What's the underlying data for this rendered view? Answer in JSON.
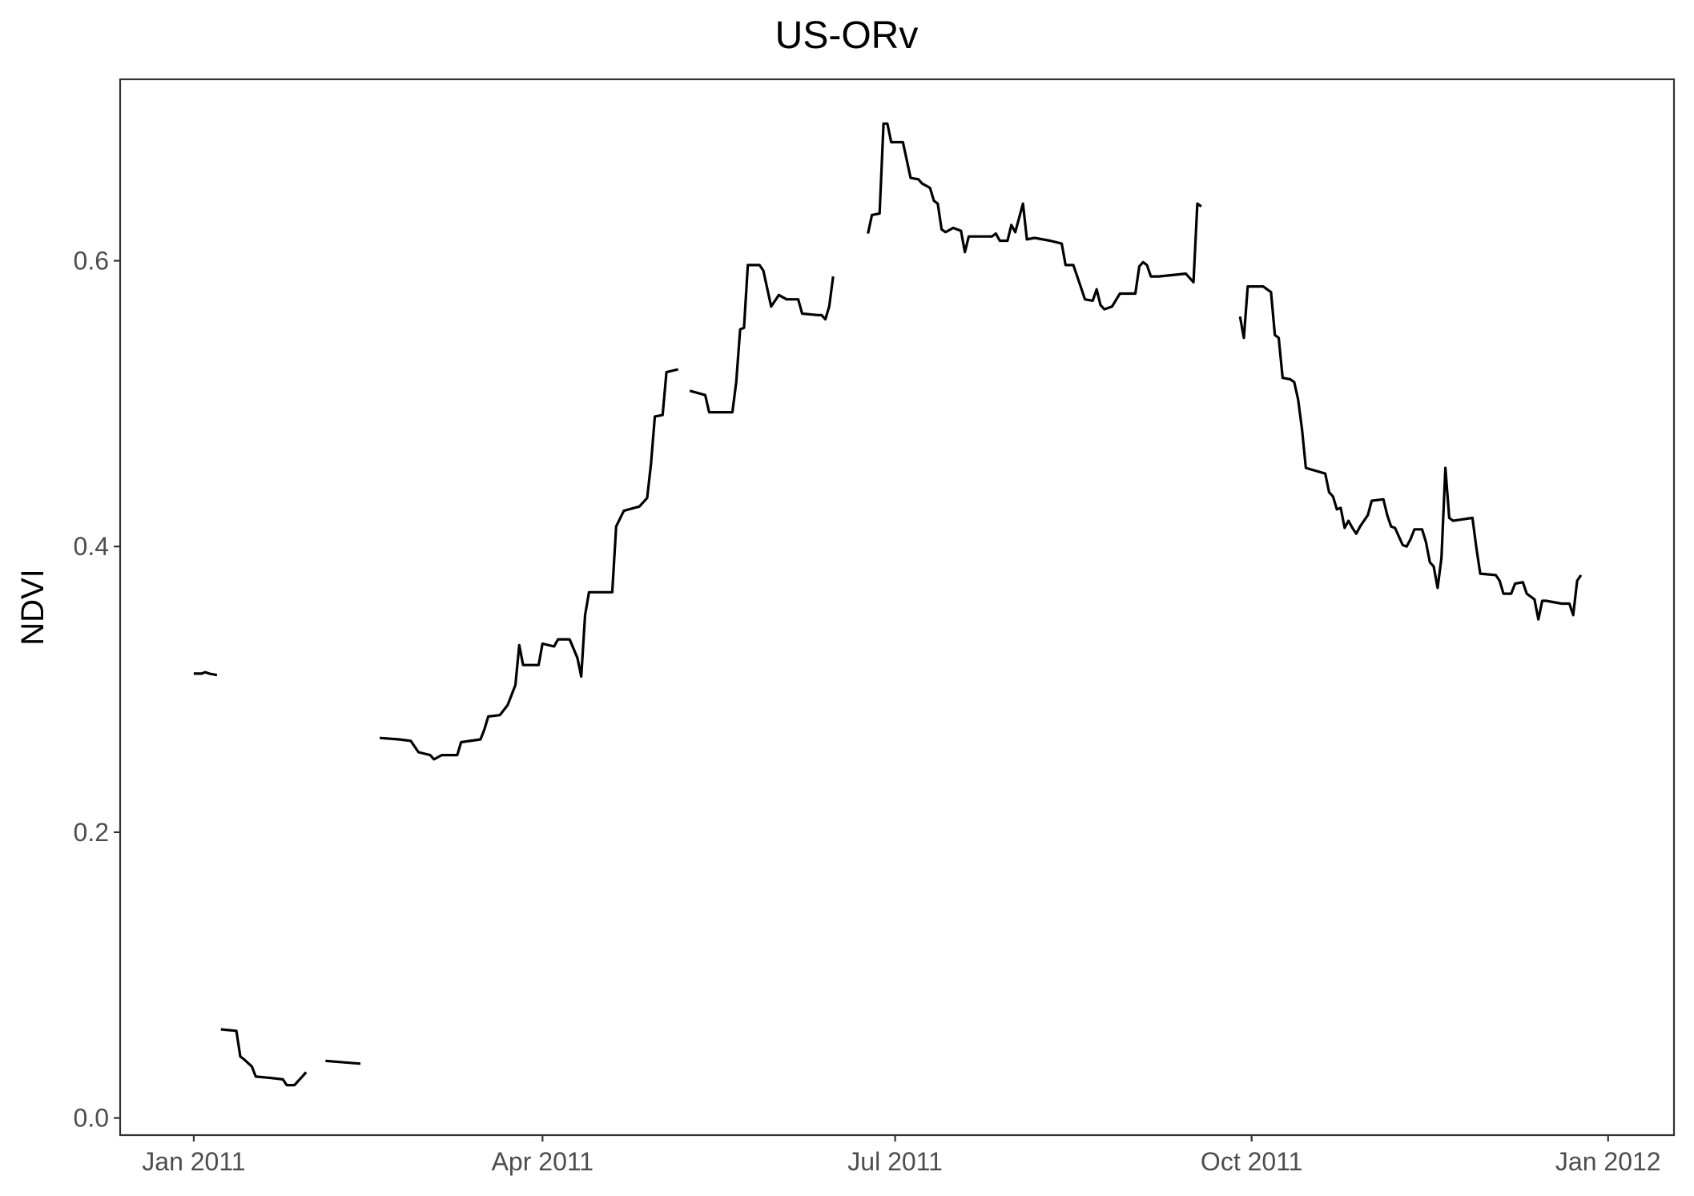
{
  "chart_data": {
    "type": "line",
    "title": "US-ORv",
    "xlabel": "",
    "ylabel": "NDVI",
    "x_ticks": [
      {
        "date": "2011-01-01",
        "label": "Jan 2011"
      },
      {
        "date": "2011-04-01",
        "label": "Apr 2011"
      },
      {
        "date": "2011-07-01",
        "label": "Jul 2011"
      },
      {
        "date": "2011-10-01",
        "label": "Oct 2011"
      },
      {
        "date": "2012-01-01",
        "label": "Jan 2012"
      }
    ],
    "y_ticks": [
      {
        "value": 0.0,
        "label": "0.0"
      },
      {
        "value": 0.2,
        "label": "0.2"
      },
      {
        "value": 0.4,
        "label": "0.4"
      },
      {
        "value": 0.6,
        "label": "0.6"
      }
    ],
    "xlim": [
      "2010-12-13",
      "2012-01-18"
    ],
    "ylim": [
      -0.012,
      0.727
    ],
    "grid": false,
    "legend": "none",
    "line_color": "#000000",
    "series": [
      {
        "segments": [
          [
            [
              "2011-01-01",
              0.311
            ],
            [
              "2011-01-03",
              0.311
            ],
            [
              "2011-01-04",
              0.312
            ],
            [
              "2011-01-05",
              0.311
            ],
            [
              "2011-01-07",
              0.31
            ]
          ],
          [
            [
              "2011-01-08",
              0.062
            ],
            [
              "2011-01-12",
              0.061
            ],
            [
              "2011-01-13",
              0.043
            ],
            [
              "2011-01-14",
              0.041
            ],
            [
              "2011-01-16",
              0.036
            ],
            [
              "2011-01-17",
              0.029
            ],
            [
              "2011-01-21",
              0.028
            ],
            [
              "2011-01-24",
              0.027
            ],
            [
              "2011-01-25",
              0.023
            ],
            [
              "2011-01-27",
              0.023
            ],
            [
              "2011-01-28",
              0.026
            ],
            [
              "2011-01-29",
              0.029
            ],
            [
              "2011-01-30",
              0.032
            ]
          ],
          [
            [
              "2011-02-04",
              0.04
            ],
            [
              "2011-02-13",
              0.038
            ]
          ],
          [
            [
              "2011-02-18",
              0.266
            ],
            [
              "2011-02-23",
              0.265
            ],
            [
              "2011-02-26",
              0.264
            ],
            [
              "2011-02-28",
              0.256
            ],
            [
              "2011-03-03",
              0.254
            ],
            [
              "2011-03-04",
              0.251
            ],
            [
              "2011-03-06",
              0.254
            ],
            [
              "2011-03-10",
              0.254
            ],
            [
              "2011-03-11",
              0.263
            ],
            [
              "2011-03-16",
              0.265
            ],
            [
              "2011-03-17",
              0.272
            ],
            [
              "2011-03-18",
              0.281
            ],
            [
              "2011-03-21",
              0.282
            ],
            [
              "2011-03-23",
              0.289
            ],
            [
              "2011-03-25",
              0.303
            ],
            [
              "2011-03-26",
              0.331
            ],
            [
              "2011-03-27",
              0.317
            ],
            [
              "2011-03-31",
              0.317
            ],
            [
              "2011-04-01",
              0.332
            ],
            [
              "2011-04-04",
              0.33
            ],
            [
              "2011-04-05",
              0.335
            ],
            [
              "2011-04-08",
              0.335
            ],
            [
              "2011-04-10",
              0.322
            ],
            [
              "2011-04-11",
              0.309
            ],
            [
              "2011-04-12",
              0.352
            ],
            [
              "2011-04-13",
              0.368
            ],
            [
              "2011-04-19",
              0.368
            ],
            [
              "2011-04-20",
              0.414
            ],
            [
              "2011-04-22",
              0.425
            ],
            [
              "2011-04-26",
              0.428
            ],
            [
              "2011-04-28",
              0.434
            ],
            [
              "2011-04-29",
              0.458
            ],
            [
              "2011-04-30",
              0.491
            ],
            [
              "2011-05-02",
              0.492
            ],
            [
              "2011-05-03",
              0.522
            ],
            [
              "2011-05-06",
              0.524
            ]
          ],
          [
            [
              "2011-05-09",
              0.509
            ],
            [
              "2011-05-13",
              0.506
            ],
            [
              "2011-05-14",
              0.494
            ],
            [
              "2011-05-20",
              0.494
            ],
            [
              "2011-05-21",
              0.515
            ],
            [
              "2011-05-22",
              0.552
            ],
            [
              "2011-05-23",
              0.553
            ],
            [
              "2011-05-24",
              0.597
            ],
            [
              "2011-05-27",
              0.597
            ],
            [
              "2011-05-28",
              0.593
            ],
            [
              "2011-05-30",
              0.568
            ],
            [
              "2011-06-01",
              0.576
            ],
            [
              "2011-06-03",
              0.573
            ],
            [
              "2011-06-06",
              0.573
            ],
            [
              "2011-06-07",
              0.563
            ],
            [
              "2011-06-11",
              0.562
            ],
            [
              "2011-06-12",
              0.562
            ],
            [
              "2011-06-13",
              0.559
            ],
            [
              "2011-06-14",
              0.568
            ],
            [
              "2011-06-15",
              0.589
            ]
          ],
          [
            [
              "2011-06-24",
              0.619
            ],
            [
              "2011-06-25",
              0.632
            ],
            [
              "2011-06-27",
              0.633
            ],
            [
              "2011-06-28",
              0.696
            ],
            [
              "2011-06-29",
              0.696
            ],
            [
              "2011-06-30",
              0.683
            ],
            [
              "2011-07-03",
              0.683
            ],
            [
              "2011-07-05",
              0.658
            ],
            [
              "2011-07-07",
              0.657
            ],
            [
              "2011-07-08",
              0.654
            ],
            [
              "2011-07-10",
              0.651
            ],
            [
              "2011-07-11",
              0.642
            ],
            [
              "2011-07-12",
              0.64
            ],
            [
              "2011-07-13",
              0.622
            ],
            [
              "2011-07-14",
              0.62
            ],
            [
              "2011-07-16",
              0.623
            ],
            [
              "2011-07-18",
              0.621
            ],
            [
              "2011-07-19",
              0.606
            ],
            [
              "2011-07-20",
              0.617
            ],
            [
              "2011-07-26",
              0.617
            ],
            [
              "2011-07-27",
              0.619
            ],
            [
              "2011-07-28",
              0.614
            ],
            [
              "2011-07-30",
              0.614
            ],
            [
              "2011-07-31",
              0.625
            ],
            [
              "2011-08-01",
              0.62
            ],
            [
              "2011-08-02",
              0.63
            ],
            [
              "2011-08-03",
              0.64
            ],
            [
              "2011-08-04",
              0.615
            ],
            [
              "2011-08-06",
              0.616
            ],
            [
              "2011-08-10",
              0.614
            ],
            [
              "2011-08-13",
              0.612
            ],
            [
              "2011-08-14",
              0.597
            ],
            [
              "2011-08-16",
              0.597
            ],
            [
              "2011-08-18",
              0.581
            ],
            [
              "2011-08-19",
              0.573
            ],
            [
              "2011-08-21",
              0.572
            ],
            [
              "2011-08-22",
              0.58
            ],
            [
              "2011-08-23",
              0.569
            ],
            [
              "2011-08-24",
              0.566
            ],
            [
              "2011-08-26",
              0.568
            ],
            [
              "2011-08-28",
              0.577
            ],
            [
              "2011-09-01",
              0.577
            ],
            [
              "2011-09-02",
              0.596
            ],
            [
              "2011-09-03",
              0.599
            ],
            [
              "2011-09-04",
              0.597
            ],
            [
              "2011-09-05",
              0.589
            ],
            [
              "2011-09-07",
              0.589
            ],
            [
              "2011-09-14",
              0.591
            ],
            [
              "2011-09-15",
              0.588
            ],
            [
              "2011-09-16",
              0.585
            ],
            [
              "2011-09-17",
              0.64
            ],
            [
              "2011-09-18",
              0.638
            ]
          ],
          [
            [
              "2011-09-28",
              0.561
            ],
            [
              "2011-09-29",
              0.546
            ],
            [
              "2011-09-30",
              0.582
            ],
            [
              "2011-10-04",
              0.582
            ],
            [
              "2011-10-05",
              0.58
            ],
            [
              "2011-10-06",
              0.578
            ],
            [
              "2011-10-07",
              0.548
            ],
            [
              "2011-10-08",
              0.546
            ],
            [
              "2011-10-09",
              0.518
            ],
            [
              "2011-10-11",
              0.517
            ],
            [
              "2011-10-12",
              0.515
            ],
            [
              "2011-10-13",
              0.503
            ],
            [
              "2011-10-14",
              0.482
            ],
            [
              "2011-10-15",
              0.455
            ],
            [
              "2011-10-20",
              0.451
            ],
            [
              "2011-10-21",
              0.438
            ],
            [
              "2011-10-22",
              0.435
            ],
            [
              "2011-10-23",
              0.426
            ],
            [
              "2011-10-24",
              0.427
            ],
            [
              "2011-10-25",
              0.413
            ],
            [
              "2011-10-26",
              0.418
            ],
            [
              "2011-10-27",
              0.413
            ],
            [
              "2011-10-28",
              0.409
            ],
            [
              "2011-10-29",
              0.414
            ],
            [
              "2011-10-31",
              0.422
            ],
            [
              "2011-11-01",
              0.432
            ],
            [
              "2011-11-04",
              0.433
            ],
            [
              "2011-11-05",
              0.422
            ],
            [
              "2011-11-06",
              0.414
            ],
            [
              "2011-11-07",
              0.413
            ],
            [
              "2011-11-09",
              0.401
            ],
            [
              "2011-11-10",
              0.4
            ],
            [
              "2011-11-11",
              0.405
            ],
            [
              "2011-11-12",
              0.412
            ],
            [
              "2011-11-14",
              0.412
            ],
            [
              "2011-11-15",
              0.403
            ],
            [
              "2011-11-16",
              0.389
            ],
            [
              "2011-11-17",
              0.386
            ],
            [
              "2011-11-18",
              0.371
            ],
            [
              "2011-11-19",
              0.392
            ],
            [
              "2011-11-20",
              0.455
            ],
            [
              "2011-11-21",
              0.42
            ],
            [
              "2011-11-22",
              0.418
            ],
            [
              "2011-11-27",
              0.42
            ],
            [
              "2011-11-28",
              0.399
            ],
            [
              "2011-11-29",
              0.381
            ],
            [
              "2011-12-03",
              0.38
            ],
            [
              "2011-12-04",
              0.376
            ],
            [
              "2011-12-05",
              0.367
            ],
            [
              "2011-12-07",
              0.367
            ],
            [
              "2011-12-08",
              0.374
            ],
            [
              "2011-12-10",
              0.375
            ],
            [
              "2011-12-11",
              0.367
            ],
            [
              "2011-12-13",
              0.363
            ],
            [
              "2011-12-14",
              0.349
            ],
            [
              "2011-12-15",
              0.362
            ],
            [
              "2011-12-16",
              0.362
            ],
            [
              "2011-12-20",
              0.36
            ],
            [
              "2011-12-22",
              0.36
            ],
            [
              "2011-12-23",
              0.352
            ],
            [
              "2011-12-24",
              0.376
            ],
            [
              "2011-12-25",
              0.38
            ]
          ]
        ]
      }
    ]
  }
}
